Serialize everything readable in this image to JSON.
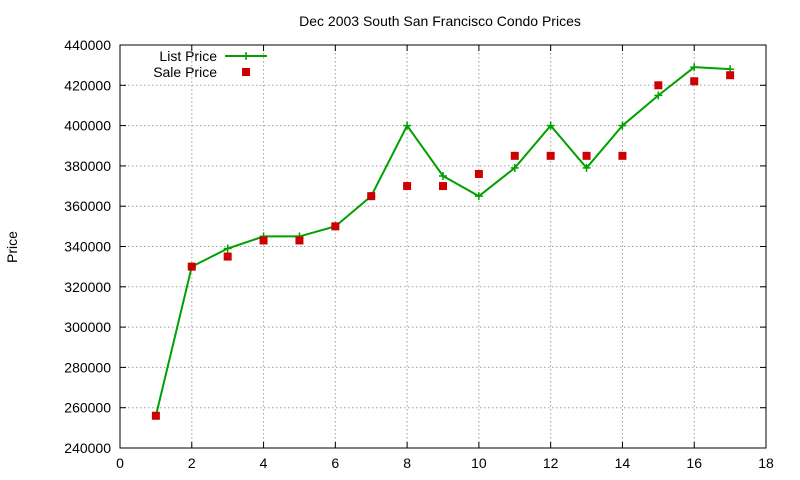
{
  "chart_data": {
    "type": "line",
    "title": "Dec 2003 South San Francisco Condo Prices",
    "xlabel": "",
    "ylabel": "Price",
    "xlim": [
      0,
      18
    ],
    "ylim": [
      240000,
      440000
    ],
    "x_ticks": [
      0,
      2,
      4,
      6,
      8,
      10,
      12,
      14,
      16,
      18
    ],
    "y_ticks": [
      240000,
      260000,
      280000,
      300000,
      320000,
      340000,
      360000,
      380000,
      400000,
      420000,
      440000
    ],
    "grid": true,
    "legend_position": "top-left",
    "series": [
      {
        "name": "List Price",
        "style": "line-with-plus-markers",
        "color": "#00a000",
        "points": [
          [
            2,
            330000
          ],
          [
            3,
            339000
          ],
          [
            4,
            345000
          ],
          [
            5,
            345000
          ],
          [
            6,
            350000
          ],
          [
            7,
            365000
          ],
          [
            8,
            400000
          ],
          [
            9,
            375000
          ],
          [
            10,
            365000
          ],
          [
            11,
            379000
          ],
          [
            12,
            400000
          ],
          [
            13,
            379000
          ],
          [
            14,
            400000
          ],
          [
            15,
            415000
          ],
          [
            16,
            429000
          ],
          [
            17,
            428000
          ]
        ],
        "line_start": [
          1,
          256000
        ]
      },
      {
        "name": "Sale Price",
        "style": "square-points",
        "color": "#cc0000",
        "points": [
          [
            1,
            256000
          ],
          [
            2,
            330000
          ],
          [
            3,
            335000
          ],
          [
            4,
            343000
          ],
          [
            5,
            343000
          ],
          [
            6,
            350000
          ],
          [
            7,
            365000
          ],
          [
            8,
            370000
          ],
          [
            9,
            370000
          ],
          [
            10,
            376000
          ],
          [
            11,
            385000
          ],
          [
            12,
            385000
          ],
          [
            13,
            385000
          ],
          [
            14,
            385000
          ],
          [
            15,
            420000
          ],
          [
            16,
            422000
          ],
          [
            17,
            425000
          ]
        ]
      }
    ]
  }
}
